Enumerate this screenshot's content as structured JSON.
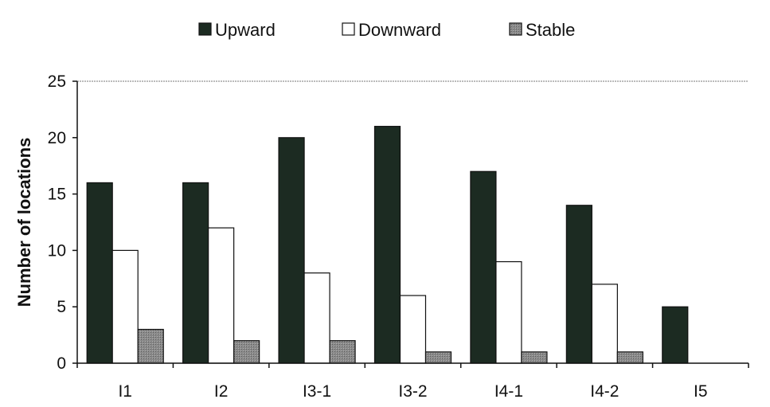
{
  "chart_data": {
    "type": "bar",
    "title": "",
    "xlabel": "",
    "ylabel": "Number of locations",
    "ylim": [
      0,
      25
    ],
    "yticks": [
      0,
      5,
      10,
      15,
      20,
      25
    ],
    "grid": false,
    "legend_position": "top",
    "categories": [
      "I1",
      "I2",
      "I3-1",
      "I3-2",
      "I4-1",
      "I4-2",
      "I5"
    ],
    "series": [
      {
        "name": "Upward",
        "color": "#1c2b22",
        "values": [
          16,
          16,
          20,
          21,
          17,
          14,
          5
        ]
      },
      {
        "name": "Downward",
        "color": "#ffffff",
        "values": [
          10,
          12,
          8,
          6,
          9,
          7,
          0
        ]
      },
      {
        "name": "Stable",
        "color": "#8a8a8a",
        "values": [
          3,
          2,
          2,
          1,
          1,
          1,
          0
        ]
      }
    ]
  }
}
